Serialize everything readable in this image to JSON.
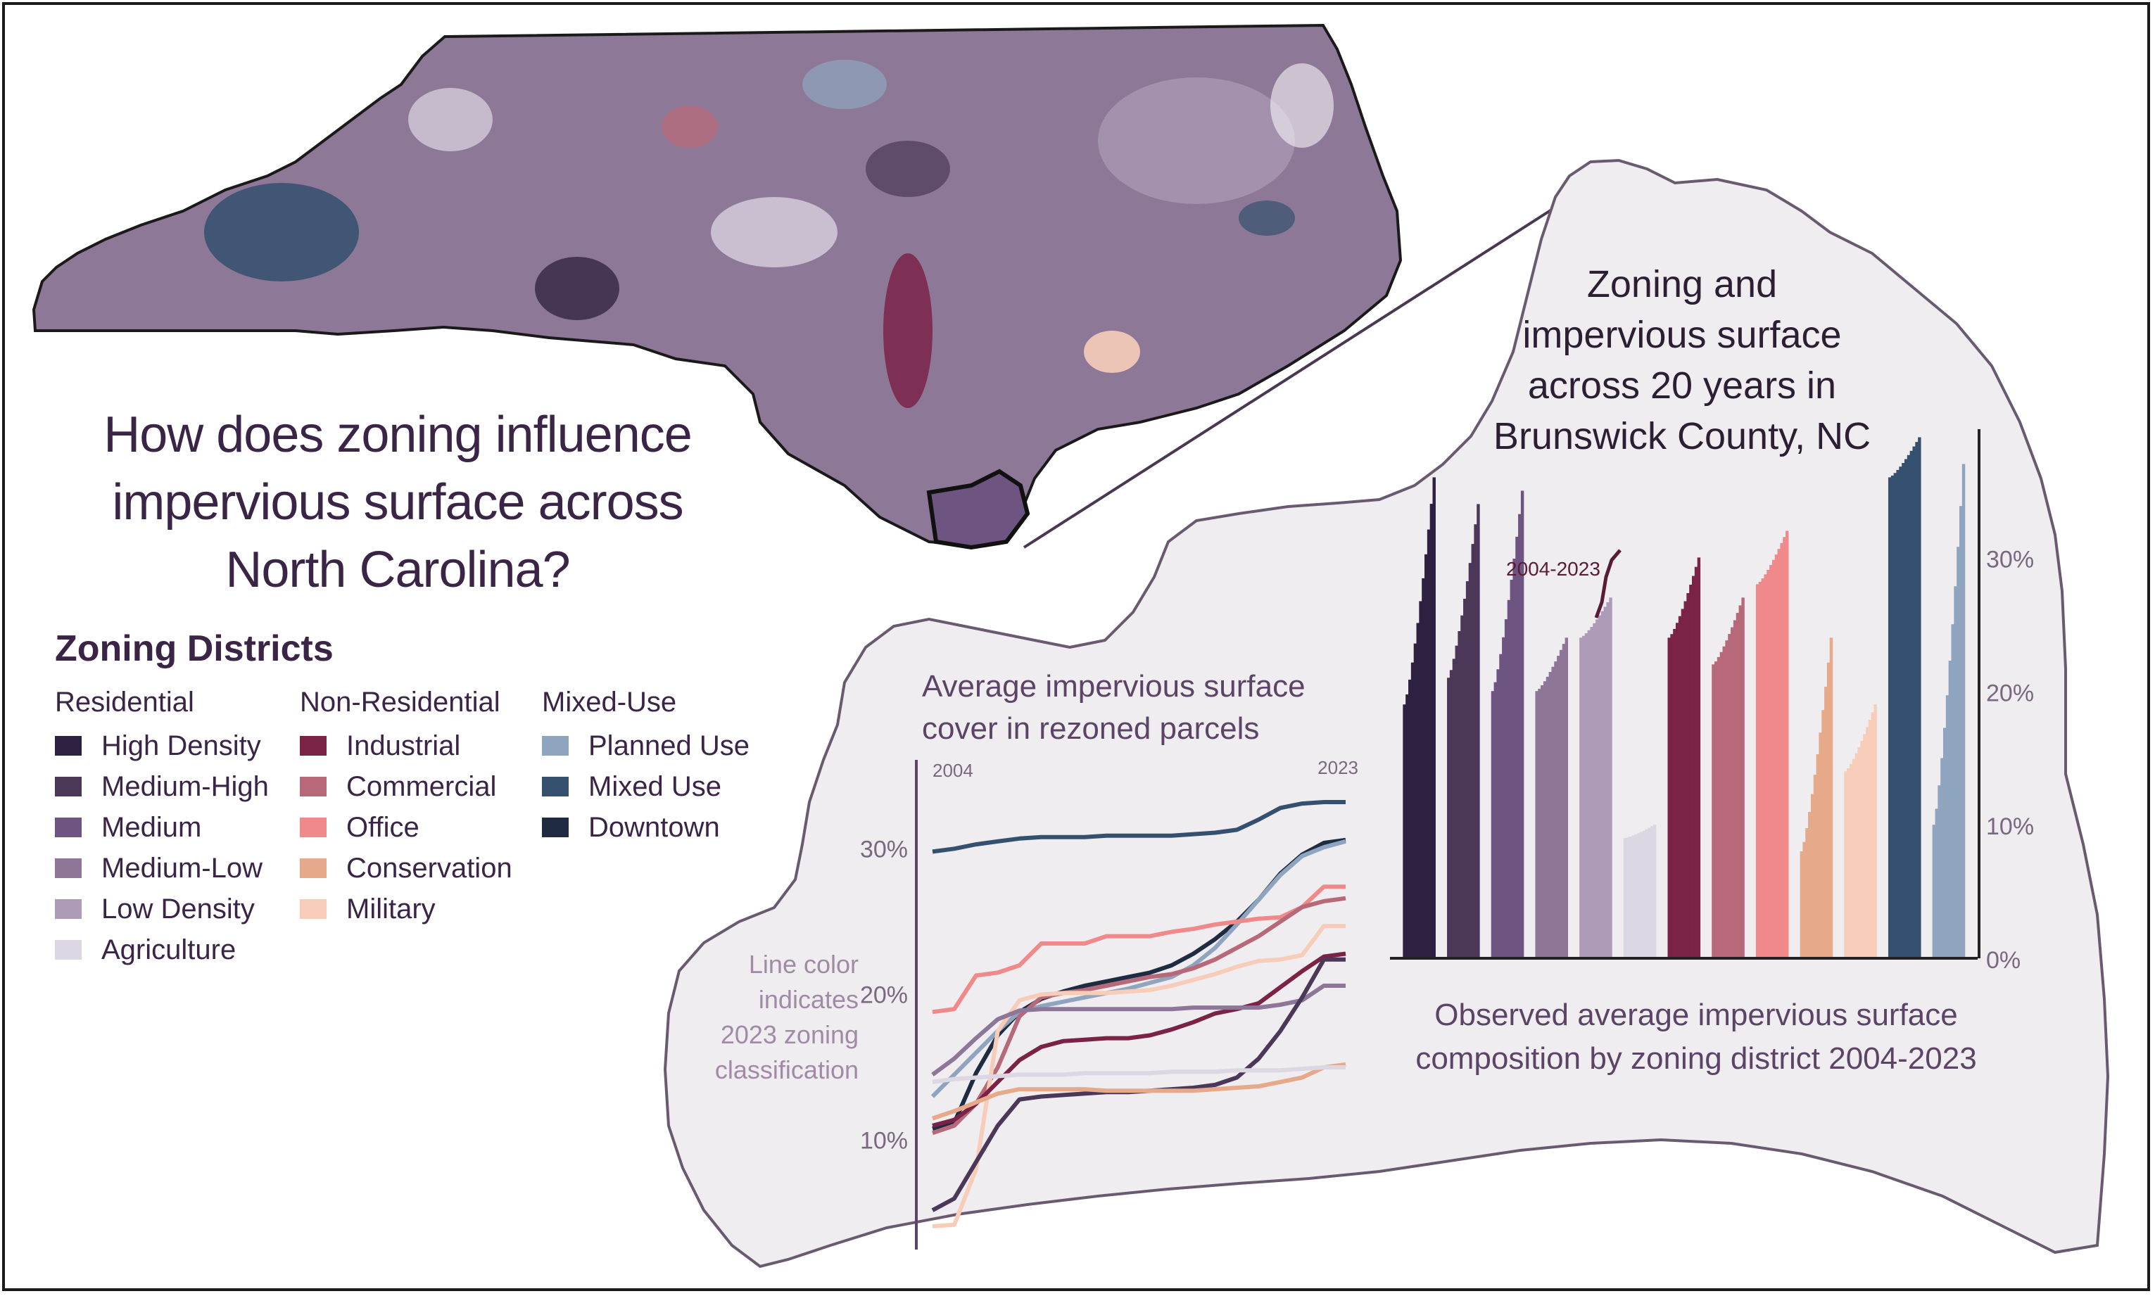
{
  "main_title_lines": [
    "How does zoning influence",
    "impervious surface across",
    "North Carolina?"
  ],
  "legend": {
    "title": "Zoning Districts",
    "groups": [
      {
        "heading": "Residential",
        "items": [
          {
            "label": "High Density",
            "color": "#2d2040"
          },
          {
            "label": "Medium-High",
            "color": "#4b3858"
          },
          {
            "label": "Medium",
            "color": "#6e5480"
          },
          {
            "label": "Medium-Low",
            "color": "#8d7698"
          },
          {
            "label": "Low Density",
            "color": "#ad9bb8"
          },
          {
            "label": "Agriculture",
            "color": "#ddd7e3"
          }
        ]
      },
      {
        "heading": "Non-Residential",
        "items": [
          {
            "label": "Industrial",
            "color": "#7a2347"
          },
          {
            "label": "Commercial",
            "color": "#b7697a"
          },
          {
            "label": "Office",
            "color": "#f08a8a"
          },
          {
            "label": "Conservation",
            "color": "#e6a98a"
          },
          {
            "label": "Military",
            "color": "#f7cdb9"
          }
        ]
      },
      {
        "heading": "Mixed-Use",
        "items": [
          {
            "label": "Planned Use",
            "color": "#8fa5bf"
          },
          {
            "label": "Mixed Use",
            "color": "#34506e"
          },
          {
            "label": "Downtown",
            "color": "#1e2b40"
          }
        ]
      }
    ]
  },
  "chart_data": [
    {
      "type": "bar",
      "title": "Zoning and impervious surface across 20 years in Brunswick County, NC",
      "title_lines": [
        "Zoning and",
        "impervious surface",
        "across 20 years in",
        "Brunswick County, NC"
      ],
      "caption_lines": [
        "Observed average impervious surface",
        "composition by zoning district 2004-2023"
      ],
      "annotation": "2004-2023",
      "y_ticks": [
        "0%",
        "10%",
        "20%",
        "30%"
      ],
      "ylim": [
        0,
        39.5
      ],
      "categories": [
        "High Density",
        "Medium-High",
        "Medium",
        "Medium-Low",
        "Low Density",
        "Agriculture",
        "Industrial",
        "Commercial",
        "Office",
        "Conservation",
        "Military",
        "Mixed Use",
        "Planned Use"
      ],
      "series": [
        {
          "category": "High Density",
          "start": 19,
          "end": 36,
          "color": "#2d2040"
        },
        {
          "category": "Medium-High",
          "start": 21,
          "end": 34,
          "color": "#4b3858"
        },
        {
          "category": "Medium",
          "start": 20,
          "end": 35,
          "color": "#6e5480"
        },
        {
          "category": "Medium-Low",
          "start": 20,
          "end": 24,
          "color": "#8d7698"
        },
        {
          "category": "Low Density",
          "start": 24,
          "end": 27,
          "color": "#ad9bb8"
        },
        {
          "category": "Agriculture",
          "start": 9,
          "end": 10,
          "color": "#ddd7e3"
        },
        {
          "category": "Industrial",
          "start": 24,
          "end": 30,
          "color": "#7a2347"
        },
        {
          "category": "Commercial",
          "start": 22,
          "end": 27,
          "color": "#b7697a"
        },
        {
          "category": "Office",
          "start": 28,
          "end": 32,
          "color": "#f08a8a"
        },
        {
          "category": "Conservation",
          "start": 8,
          "end": 24,
          "color": "#e6a98a"
        },
        {
          "category": "Military",
          "start": 14,
          "end": 19,
          "color": "#f7cdb9"
        },
        {
          "category": "Mixed Use",
          "start": 36,
          "end": 39,
          "color": "#34506e"
        },
        {
          "category": "Planned Use",
          "start": 10,
          "end": 37,
          "color": "#8fa5bf"
        }
      ]
    },
    {
      "type": "line",
      "title": "Average impervious surface cover in rezoned parcels",
      "title_lines": [
        "Average impervious surface",
        "cover in rezoned parcels"
      ],
      "x_start_label": "2004",
      "x_end_label": "2023",
      "y_ticks": [
        "10%",
        "20%",
        "30%"
      ],
      "note_lines": [
        "Line color",
        "indicates",
        "2023 zoning",
        "classification"
      ],
      "x": [
        2004,
        2005,
        2006,
        2007,
        2008,
        2009,
        2010,
        2011,
        2012,
        2013,
        2014,
        2015,
        2016,
        2017,
        2018,
        2019,
        2020,
        2021,
        2022,
        2023
      ],
      "ylim": [
        2.5,
        36
      ],
      "series": [
        {
          "name": "Mixed Use",
          "color": "#34506e",
          "values": [
            29.8,
            30.0,
            30.3,
            30.5,
            30.7,
            30.8,
            30.8,
            30.8,
            30.9,
            30.9,
            30.9,
            30.9,
            31.0,
            31.1,
            31.3,
            32.0,
            32.8,
            33.1,
            33.2,
            33.2
          ]
        },
        {
          "name": "Downtown",
          "color": "#1e2b40",
          "values": [
            10.8,
            11.2,
            14.6,
            17.2,
            18.8,
            19.7,
            20.2,
            20.6,
            20.9,
            21.2,
            21.5,
            22.0,
            22.8,
            23.8,
            25.0,
            26.5,
            28.3,
            29.6,
            30.4,
            30.6
          ]
        },
        {
          "name": "Planned Use",
          "color": "#8fa5bf",
          "values": [
            13.0,
            14.5,
            16.0,
            17.5,
            18.8,
            19.2,
            19.5,
            19.8,
            20.1,
            20.4,
            20.8,
            21.2,
            22.0,
            23.2,
            24.8,
            26.5,
            28.2,
            29.5,
            30.1,
            30.5
          ]
        },
        {
          "name": "Office",
          "color": "#f08a8a",
          "values": [
            18.8,
            19.0,
            21.3,
            21.5,
            22.0,
            23.5,
            23.5,
            23.5,
            24.0,
            24.0,
            24.0,
            24.3,
            24.5,
            24.8,
            25.0,
            25.2,
            25.3,
            26.0,
            27.4,
            27.4
          ]
        },
        {
          "name": "Commercial",
          "color": "#b7697a",
          "values": [
            10.5,
            11.0,
            12.5,
            15.0,
            18.5,
            19.8,
            20.1,
            20.3,
            20.6,
            20.9,
            21.2,
            21.4,
            21.8,
            22.4,
            23.2,
            24.0,
            25.0,
            26.0,
            26.4,
            26.6
          ]
        },
        {
          "name": "Military",
          "color": "#f7cdb9",
          "values": [
            4.1,
            4.2,
            8.0,
            17.5,
            19.6,
            20.0,
            20.1,
            20.1,
            20.1,
            20.2,
            20.3,
            20.6,
            21.0,
            21.4,
            21.9,
            22.3,
            22.4,
            22.7,
            24.7,
            24.7
          ]
        },
        {
          "name": "Industrial",
          "color": "#7a2347",
          "values": [
            11.0,
            11.4,
            12.5,
            14.0,
            15.5,
            16.4,
            16.8,
            16.9,
            17.0,
            17.0,
            17.2,
            17.6,
            18.1,
            18.7,
            19.0,
            19.4,
            20.5,
            21.6,
            22.6,
            22.8
          ]
        },
        {
          "name": "Medium-Low",
          "color": "#8d7698",
          "values": [
            14.5,
            15.6,
            17.0,
            18.3,
            18.9,
            19.0,
            19.0,
            19.0,
            19.0,
            19.0,
            19.0,
            19.0,
            19.1,
            19.1,
            19.1,
            19.1,
            19.3,
            19.6,
            20.6,
            20.6
          ]
        },
        {
          "name": "Medium-High",
          "color": "#4b3858",
          "values": [
            5.2,
            6.0,
            8.5,
            11.0,
            12.8,
            13.0,
            13.1,
            13.2,
            13.3,
            13.3,
            13.4,
            13.5,
            13.6,
            13.8,
            14.3,
            15.6,
            17.5,
            19.8,
            22.4,
            22.4
          ]
        },
        {
          "name": "Conservation",
          "color": "#e6a98a",
          "values": [
            11.5,
            12.0,
            12.6,
            13.2,
            13.5,
            13.5,
            13.5,
            13.5,
            13.4,
            13.4,
            13.4,
            13.4,
            13.4,
            13.5,
            13.6,
            13.7,
            14.0,
            14.3,
            15.0,
            15.2
          ]
        },
        {
          "name": "Agriculture",
          "color": "#ddd7e3",
          "values": [
            14.0,
            14.2,
            14.3,
            14.4,
            14.5,
            14.5,
            14.5,
            14.6,
            14.6,
            14.6,
            14.6,
            14.7,
            14.7,
            14.7,
            14.8,
            14.8,
            14.8,
            14.9,
            15.0,
            15.0
          ]
        }
      ]
    }
  ]
}
